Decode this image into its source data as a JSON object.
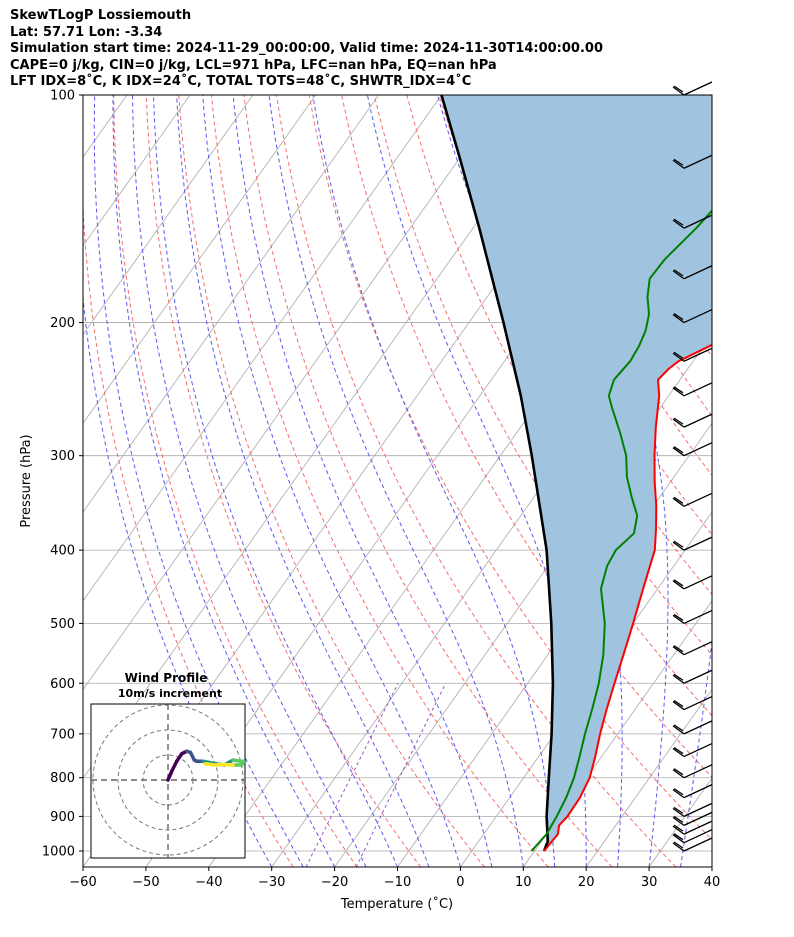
{
  "header": {
    "line1": "SkewTLogP Lossiemouth",
    "line2": "Lat: 57.71   Lon: -3.34",
    "line3": "Simulation start time: 2024-11-29_00:00:00, Valid time: 2024-11-30T14:00:00.00",
    "line4": "CAPE=0 j/kg, CIN=0 j/kg, LCL=971 hPa, LFC=nan hPa, EQ=nan hPa",
    "line5": "LFT IDX=8˚C, K IDX=24˚C, TOTAL TOTS=48˚C, SHWTR_IDX=4˚C"
  },
  "chart_data": {
    "type": "line",
    "xlabel": "Temperature (˚C)",
    "ylabel": "Pressure (hPa)",
    "xlim": [
      -60,
      40
    ],
    "ylim": [
      1050,
      100
    ],
    "yscale": "log",
    "grid": true,
    "x_ticks": [
      -60,
      -50,
      -40,
      -30,
      -20,
      -10,
      0,
      10,
      20,
      30,
      40
    ],
    "x_tick_labels": [
      "−60",
      "−50",
      "−40",
      "−30",
      "−20",
      "−10",
      "0",
      "10",
      "20",
      "30",
      "40"
    ],
    "y_ticks": [
      1000,
      900,
      800,
      700,
      600,
      500,
      400,
      300,
      200,
      100
    ],
    "y_tick_labels": [
      "1000",
      "900",
      "800",
      "700",
      "600",
      "500",
      "400",
      "300",
      "200",
      "100"
    ],
    "skew": 37,
    "colors": {
      "temperature": "#ff0000",
      "dewpoint": "#008000",
      "parcel": "#000000",
      "shade": "#a0c4df",
      "dry_adiabat": "#f46d6d",
      "moist_adiabat": "#5a5af0",
      "mixing_ratio": "#9a4fc8",
      "isotherm": "#aaaaaa"
    },
    "series": [
      {
        "name": "",
        "role": "temperature",
        "points": [
          [
            1000,
            11.5
          ],
          [
            950,
            11.8
          ],
          [
            925,
            11.0
          ],
          [
            900,
            11.3
          ],
          [
            850,
            11.2
          ],
          [
            800,
            10.5
          ],
          [
            750,
            9.0
          ],
          [
            700,
            7.2
          ],
          [
            650,
            5.5
          ],
          [
            600,
            3.8
          ],
          [
            550,
            2.0
          ],
          [
            500,
            0.0
          ],
          [
            450,
            -2.3
          ],
          [
            400,
            -4.8
          ],
          [
            375,
            -7.0
          ],
          [
            350,
            -9.5
          ],
          [
            325,
            -12.5
          ],
          [
            300,
            -15.5
          ],
          [
            275,
            -18.5
          ],
          [
            250,
            -21.5
          ],
          [
            238,
            -23.5
          ],
          [
            230,
            -23.0
          ],
          [
            225,
            -22.3
          ],
          [
            210,
            -17.5
          ],
          [
            200,
            -14.5
          ],
          [
            190,
            -11.5
          ],
          [
            180,
            -8.8
          ],
          [
            170,
            -6.2
          ],
          [
            160,
            -4.0
          ],
          [
            150,
            -2.5
          ],
          [
            140,
            -2.4
          ],
          [
            130,
            -4.3
          ],
          [
            120,
            -6.3
          ],
          [
            110,
            -9.5
          ],
          [
            100,
            -14.0
          ]
        ]
      },
      {
        "name": "",
        "role": "dewpoint",
        "points": [
          [
            1000,
            9.5
          ],
          [
            950,
            10.0
          ],
          [
            900,
            9.6
          ],
          [
            850,
            9.0
          ],
          [
            800,
            8.0
          ],
          [
            750,
            6.5
          ],
          [
            700,
            4.8
          ],
          [
            650,
            3.2
          ],
          [
            600,
            1.3
          ],
          [
            550,
            -1.2
          ],
          [
            500,
            -4.5
          ],
          [
            450,
            -9.0
          ],
          [
            420,
            -10.6
          ],
          [
            400,
            -11.0
          ],
          [
            380,
            -10.0
          ],
          [
            360,
            -11.5
          ],
          [
            340,
            -14.5
          ],
          [
            320,
            -17.5
          ],
          [
            300,
            -20.0
          ],
          [
            280,
            -23.5
          ],
          [
            260,
            -27.5
          ],
          [
            250,
            -29.5
          ],
          [
            238,
            -30.5
          ],
          [
            225,
            -30.0
          ],
          [
            215,
            -30.3
          ],
          [
            205,
            -31.0
          ],
          [
            195,
            -32.3
          ],
          [
            185,
            -34.5
          ],
          [
            175,
            -36.2
          ],
          [
            165,
            -36.0
          ],
          [
            150,
            -34.5
          ],
          [
            140,
            -33.8
          ],
          [
            130,
            -34.3
          ],
          [
            120,
            -34.6
          ],
          [
            110,
            -34.5
          ],
          [
            100,
            -35.0
          ]
        ]
      },
      {
        "name": "",
        "role": "parcel",
        "points": [
          [
            1000,
            11.5
          ],
          [
            971,
            11.0
          ],
          [
            900,
            8.0
          ],
          [
            800,
            4.0
          ],
          [
            700,
            -0.5
          ],
          [
            600,
            -6.0
          ],
          [
            500,
            -13.0
          ],
          [
            400,
            -22.0
          ],
          [
            300,
            -35.0
          ],
          [
            250,
            -43.5
          ],
          [
            200,
            -54.5
          ],
          [
            150,
            -69.0
          ],
          [
            120,
            -80.5
          ],
          [
            100,
            -90.0
          ]
        ]
      }
    ],
    "wind_barbs": {
      "pressures": [
        1000,
        975,
        950,
        925,
        900,
        850,
        800,
        750,
        700,
        650,
        600,
        550,
        500,
        450,
        400,
        350,
        300,
        275,
        250,
        225,
        200,
        175,
        150,
        125,
        100
      ],
      "note": "flags drawn as unlabeled wind barbs along right edge"
    },
    "inset": {
      "title": "Wind Profile",
      "subtitle": "10m/s increment",
      "hodograph": [
        [
          0,
          0
        ],
        [
          1.5,
          3.5
        ],
        [
          3.5,
          7.5
        ],
        [
          5.5,
          10.5
        ],
        [
          7.5,
          11.5
        ],
        [
          9.0,
          11.0
        ],
        [
          10.5,
          8.0
        ],
        [
          11.5,
          7.5
        ],
        [
          14.0,
          7.5
        ],
        [
          16.5,
          7.0
        ],
        [
          19.0,
          6.5
        ],
        [
          22.5,
          6.0
        ],
        [
          26.0,
          8.0
        ],
        [
          29.0,
          7.5
        ],
        [
          30.5,
          7.5
        ],
        [
          29.5,
          6.0
        ],
        [
          26.0,
          6.0
        ],
        [
          22.0,
          6.2
        ],
        [
          18.5,
          6.0
        ],
        [
          15.0,
          6.5
        ]
      ],
      "rings": [
        10,
        20,
        30
      ]
    }
  }
}
